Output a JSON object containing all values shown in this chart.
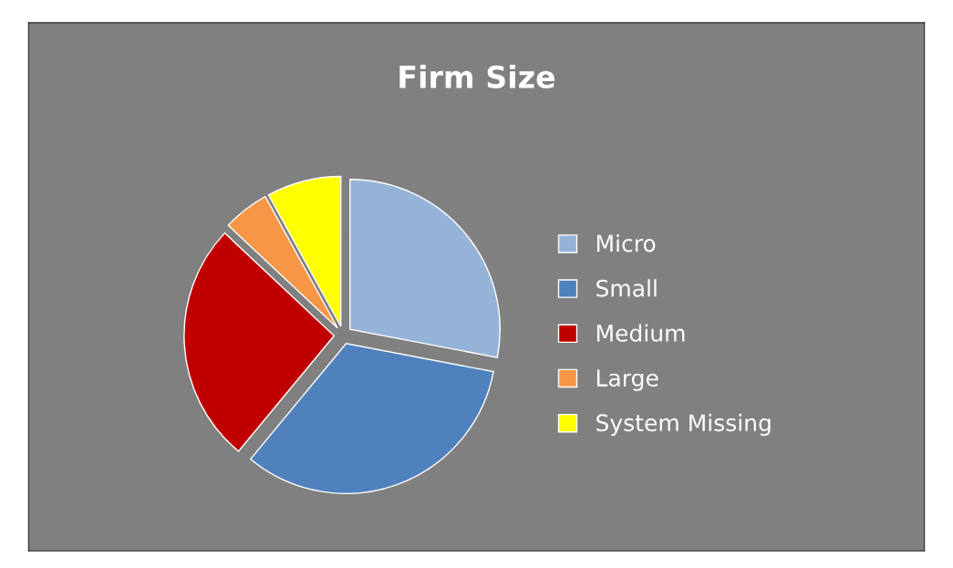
{
  "chart_data": {
    "type": "pie",
    "title": "Firm Size",
    "categories": [
      "Micro",
      "Small",
      "Medium",
      "Large",
      "System Missing"
    ],
    "values": [
      28,
      33,
      26,
      5,
      8
    ],
    "colors": [
      "#95b3d7",
      "#4f81bd",
      "#c00000",
      "#f79646",
      "#ffff00"
    ],
    "legend": "right"
  }
}
